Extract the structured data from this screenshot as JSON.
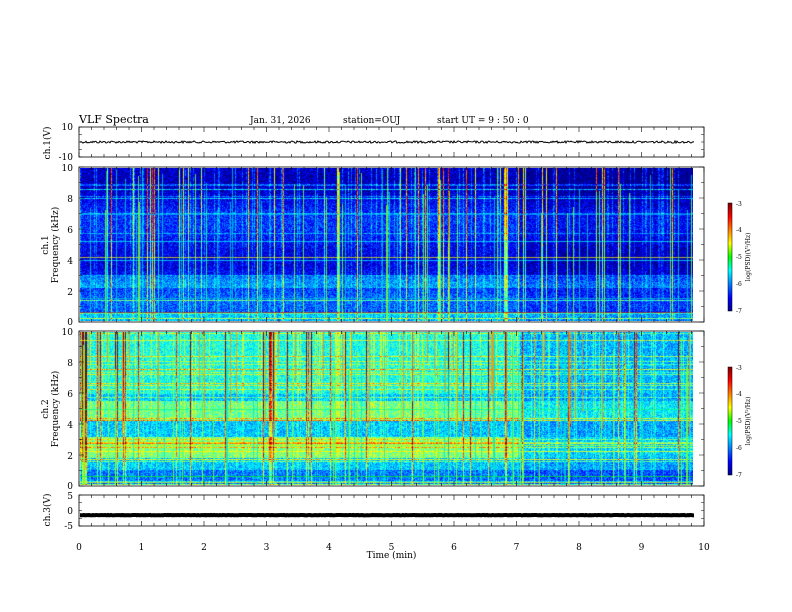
{
  "header": {
    "title": "VLF Spectra",
    "date": "Jan. 31, 2026",
    "station": "station=OUJ",
    "start": "start  UT =   9 : 50 : 0"
  },
  "chart_data": {
    "type": "heatmap",
    "xlabel": "Time  (min)",
    "xlim": [
      0,
      10
    ],
    "x_ticks": [
      "0",
      "1",
      "2",
      "3",
      "4",
      "5",
      "6",
      "7",
      "8",
      "9",
      "10"
    ],
    "change_point_min": 7.05,
    "data_end_min": 9.85,
    "panels": [
      {
        "id": "ch1-waveform",
        "type": "line",
        "ylabel": "ch.1(V)",
        "ylim": [
          -10,
          10
        ],
        "y_ticks": [
          "10",
          "-10"
        ],
        "trace_level": 0,
        "color": "#000000"
      },
      {
        "id": "ch1-spectrogram",
        "type": "heatmap",
        "ylabel_line1": "ch.1",
        "ylabel_line2": "Frequency  (kHz)",
        "ylim": [
          0,
          10
        ],
        "y_ticks": [
          "0",
          "2",
          "4",
          "6",
          "8",
          "10"
        ],
        "colorbar": {
          "label": "log(PSD)(V²/Hz)",
          "ticks": [
            "-3",
            "-4",
            "-5",
            "-6",
            "-7"
          ],
          "range": [
            -7,
            -3
          ]
        }
      },
      {
        "id": "ch2-spectrogram",
        "type": "heatmap",
        "ylabel_line1": "ch.2",
        "ylabel_line2": "Frequency  (kHz)",
        "ylim": [
          0,
          10
        ],
        "y_ticks": [
          "0",
          "2",
          "4",
          "6",
          "8",
          "10"
        ],
        "colorbar": {
          "label": "log(PSD)(V²/Hz)",
          "ticks": [
            "-3",
            "-4",
            "-5",
            "-6",
            "-7"
          ],
          "range": [
            -7,
            -3
          ]
        }
      },
      {
        "id": "ch3-waveform",
        "type": "line",
        "ylabel": "ch.3(V)",
        "ylim": [
          -5,
          5
        ],
        "y_ticks": [
          "5",
          "0",
          "-5"
        ],
        "trace_level": -1.5,
        "color": "#000000"
      }
    ]
  }
}
